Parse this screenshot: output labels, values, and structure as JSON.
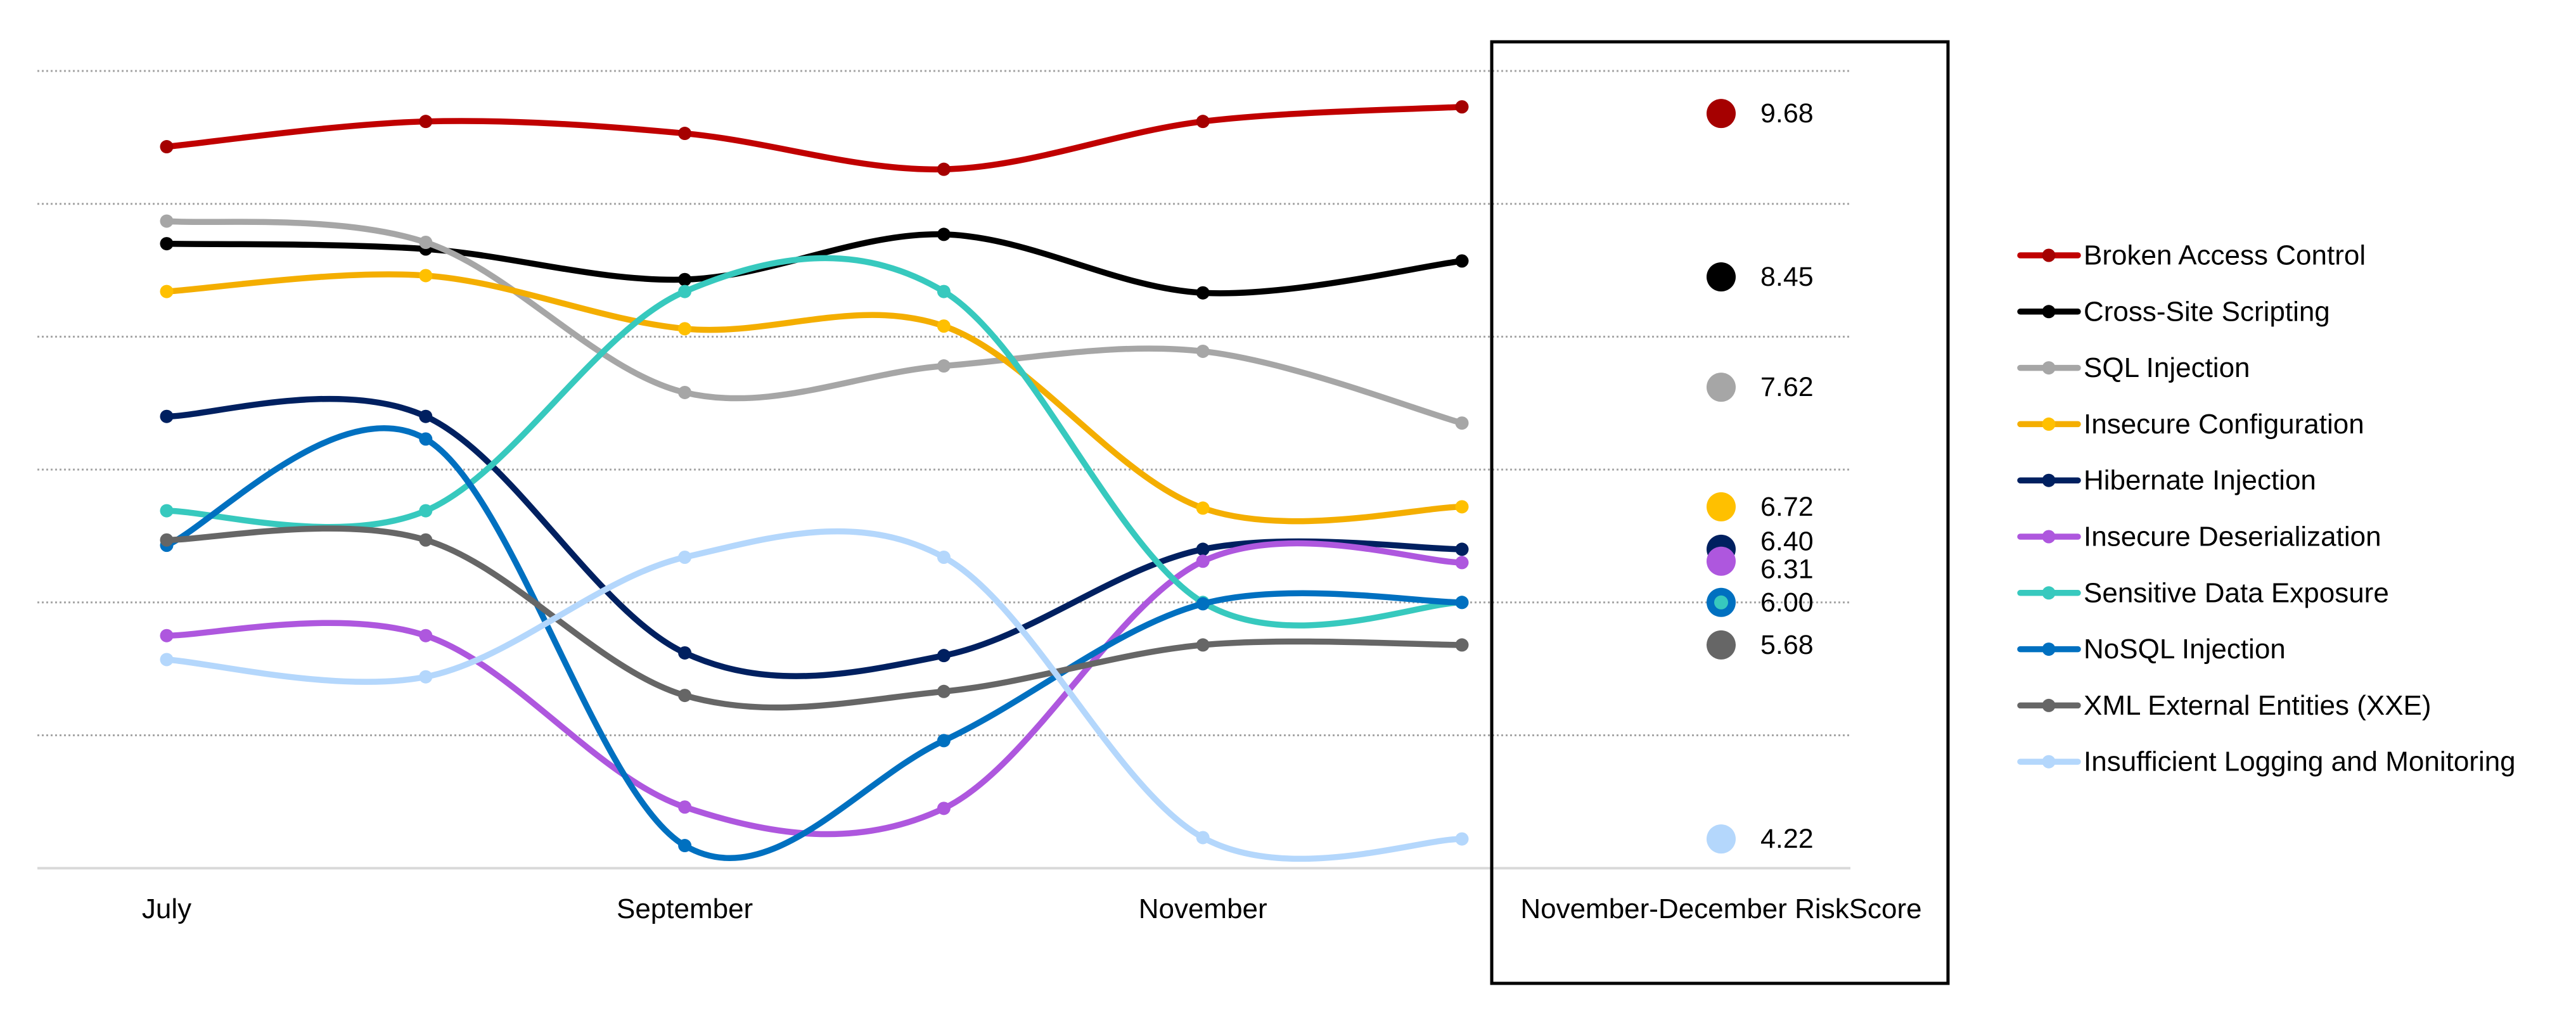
{
  "chart_data": {
    "type": "line",
    "smoothed": true,
    "title": "",
    "xlabel": "",
    "ylabel": "",
    "x_tick_labels": [
      "July",
      "",
      "September",
      "",
      "November",
      ""
    ],
    "ylim": [
      4,
      10
    ],
    "y_gridlines": [
      5,
      6,
      7,
      8,
      9,
      10
    ],
    "y_tick_labels_shown": false,
    "grid": true,
    "legend_position": "right",
    "series": [
      {
        "name": "Broken Access Control",
        "color": "#C00000",
        "marker_color": "#A50000",
        "values": [
          9.43,
          9.62,
          9.53,
          9.26,
          9.62,
          9.73
        ]
      },
      {
        "name": "Cross-Site Scripting",
        "color": "#000000",
        "marker_color": "#000000",
        "values": [
          8.7,
          8.66,
          8.43,
          8.77,
          8.33,
          8.57
        ]
      },
      {
        "name": "SQL Injection",
        "color": "#A6A6A6",
        "marker_color": "#A6A6A6",
        "values": [
          8.87,
          8.71,
          7.58,
          7.78,
          7.89,
          7.35
        ]
      },
      {
        "name": "Insecure Configuration",
        "color": "#F4AE00",
        "marker_color": "#FFC000",
        "values": [
          8.34,
          8.46,
          8.06,
          8.08,
          6.71,
          6.72
        ]
      },
      {
        "name": "Hibernate Injection",
        "color": "#002060",
        "marker_color": "#002060",
        "values": [
          7.4,
          7.4,
          5.62,
          5.6,
          6.4,
          6.4
        ]
      },
      {
        "name": "Insecure Deserialization",
        "color": "#AE57DE",
        "marker_color": "#AE57DE",
        "values": [
          5.75,
          5.75,
          4.46,
          4.45,
          6.31,
          6.3
        ]
      },
      {
        "name": "Sensitive Data Exposure",
        "color": "#37C9BE",
        "marker_color": "#37C9BE",
        "values": [
          6.69,
          6.69,
          8.34,
          8.34,
          6.0,
          6.0
        ]
      },
      {
        "name": "NoSQL Injection",
        "color": "#0070C0",
        "marker_color": "#0070C0",
        "values": [
          6.43,
          7.23,
          4.17,
          4.96,
          5.99,
          6.0
        ]
      },
      {
        "name": "XML External Entities (XXE)",
        "color": "#666666",
        "marker_color": "#666666",
        "values": [
          6.47,
          6.47,
          5.3,
          5.33,
          5.68,
          5.68
        ]
      },
      {
        "name": "Insufficient Logging and Monitoring",
        "color": "#B4D7FC",
        "marker_color": "#B4D7FC",
        "values": [
          5.57,
          5.44,
          6.34,
          6.34,
          4.23,
          4.22
        ]
      }
    ],
    "summary_panel": {
      "title": "November-December RiskScore",
      "entries": [
        {
          "label": "9.68",
          "value": 9.68,
          "series": [
            "Broken Access Control"
          ]
        },
        {
          "label": "8.45",
          "value": 8.45,
          "series": [
            "Cross-Site Scripting"
          ]
        },
        {
          "label": "7.62",
          "value": 7.62,
          "series": [
            "SQL Injection"
          ]
        },
        {
          "label": "6.72",
          "value": 6.72,
          "series": [
            "Insecure Configuration"
          ]
        },
        {
          "label": "6.40",
          "value": 6.4,
          "series": [
            "Hibernate Injection"
          ]
        },
        {
          "label": "6.31",
          "value": 6.31,
          "series": [
            "Insecure Deserialization"
          ]
        },
        {
          "label": "6.00",
          "value": 6.0,
          "series": [
            "NoSQL Injection",
            "Sensitive Data Exposure"
          ]
        },
        {
          "label": "5.68",
          "value": 5.68,
          "series": [
            "XML External Entities (XXE)"
          ]
        },
        {
          "label": "4.22",
          "value": 4.22,
          "series": [
            "Insufficient Logging and Monitoring"
          ]
        }
      ]
    },
    "colors": {
      "gridline": "#A6A6A6",
      "axis": "#D9D9D9",
      "panel_border": "#000000"
    }
  }
}
